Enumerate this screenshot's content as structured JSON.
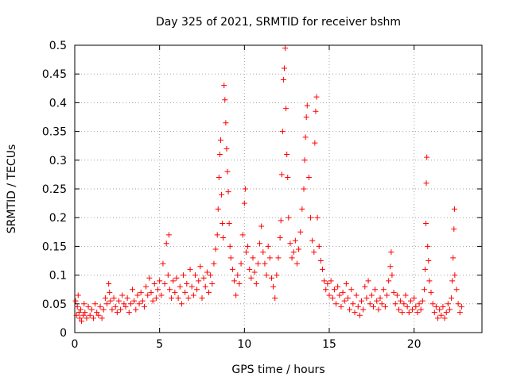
{
  "chart_data": {
    "type": "scatter",
    "title": "Day 325 of 2021, SRMTID for receiver bshm",
    "xlabel": "GPS time / hours",
    "ylabel": "SRMTID / TECUs",
    "xlim": [
      0,
      24
    ],
    "ylim": [
      0,
      0.5
    ],
    "x_ticks": [
      0,
      5,
      10,
      15,
      20
    ],
    "x_tick_labels": [
      "0",
      "5",
      "10",
      "15",
      "20"
    ],
    "y_ticks": [
      0,
      0.05,
      0.1,
      0.15,
      0.2,
      0.25,
      0.3,
      0.35,
      0.4,
      0.45,
      0.5
    ],
    "y_tick_labels": [
      "0",
      "0.05",
      "0.1",
      "0.15",
      "0.2",
      "0.25",
      "0.3",
      "0.35",
      "0.4",
      "0.45",
      "0.5"
    ],
    "grid": true,
    "marker": "+",
    "color": "#ff0000",
    "series": [
      {
        "name": "SRMTID",
        "points": [
          [
            0.05,
            0.055
          ],
          [
            0.1,
            0.03
          ],
          [
            0.15,
            0.045
          ],
          [
            0.2,
            0.065
          ],
          [
            0.25,
            0.035
          ],
          [
            0.3,
            0.025
          ],
          [
            0.35,
            0.04
          ],
          [
            0.4,
            0.02
          ],
          [
            0.5,
            0.03
          ],
          [
            0.55,
            0.05
          ],
          [
            0.6,
            0.035
          ],
          [
            0.7,
            0.025
          ],
          [
            0.8,
            0.045
          ],
          [
            0.9,
            0.03
          ],
          [
            1.0,
            0.04
          ],
          [
            1.1,
            0.025
          ],
          [
            1.2,
            0.05
          ],
          [
            1.3,
            0.035
          ],
          [
            1.4,
            0.03
          ],
          [
            1.5,
            0.045
          ],
          [
            1.6,
            0.025
          ],
          [
            1.7,
            0.04
          ],
          [
            1.8,
            0.06
          ],
          [
            1.9,
            0.05
          ],
          [
            2.0,
            0.085
          ],
          [
            2.05,
            0.07
          ],
          [
            2.1,
            0.055
          ],
          [
            2.2,
            0.04
          ],
          [
            2.3,
            0.06
          ],
          [
            2.4,
            0.045
          ],
          [
            2.5,
            0.035
          ],
          [
            2.6,
            0.055
          ],
          [
            2.7,
            0.04
          ],
          [
            2.8,
            0.065
          ],
          [
            2.9,
            0.05
          ],
          [
            3.0,
            0.045
          ],
          [
            3.1,
            0.06
          ],
          [
            3.2,
            0.035
          ],
          [
            3.3,
            0.05
          ],
          [
            3.4,
            0.075
          ],
          [
            3.5,
            0.055
          ],
          [
            3.6,
            0.04
          ],
          [
            3.7,
            0.065
          ],
          [
            3.8,
            0.05
          ],
          [
            3.9,
            0.07
          ],
          [
            4.0,
            0.055
          ],
          [
            4.1,
            0.045
          ],
          [
            4.2,
            0.08
          ],
          [
            4.3,
            0.065
          ],
          [
            4.4,
            0.095
          ],
          [
            4.5,
            0.07
          ],
          [
            4.6,
            0.055
          ],
          [
            4.7,
            0.085
          ],
          [
            4.8,
            0.06
          ],
          [
            4.9,
            0.075
          ],
          [
            5.0,
            0.09
          ],
          [
            5.1,
            0.065
          ],
          [
            5.2,
            0.12
          ],
          [
            5.3,
            0.085
          ],
          [
            5.4,
            0.155
          ],
          [
            5.5,
            0.1
          ],
          [
            5.55,
            0.17
          ],
          [
            5.6,
            0.075
          ],
          [
            5.7,
            0.06
          ],
          [
            5.8,
            0.09
          ],
          [
            5.9,
            0.07
          ],
          [
            6.0,
            0.095
          ],
          [
            6.1,
            0.06
          ],
          [
            6.2,
            0.08
          ],
          [
            6.3,
            0.05
          ],
          [
            6.4,
            0.1
          ],
          [
            6.5,
            0.07
          ],
          [
            6.6,
            0.085
          ],
          [
            6.7,
            0.06
          ],
          [
            6.8,
            0.11
          ],
          [
            6.9,
            0.08
          ],
          [
            7.0,
            0.065
          ],
          [
            7.1,
            0.1
          ],
          [
            7.2,
            0.075
          ],
          [
            7.3,
            0.09
          ],
          [
            7.4,
            0.115
          ],
          [
            7.5,
            0.06
          ],
          [
            7.6,
            0.095
          ],
          [
            7.7,
            0.08
          ],
          [
            7.8,
            0.105
          ],
          [
            7.9,
            0.07
          ],
          [
            8.0,
            0.1
          ],
          [
            8.1,
            0.085
          ],
          [
            8.2,
            0.12
          ],
          [
            8.3,
            0.145
          ],
          [
            8.4,
            0.17
          ],
          [
            8.45,
            0.215
          ],
          [
            8.5,
            0.27
          ],
          [
            8.55,
            0.31
          ],
          [
            8.6,
            0.335
          ],
          [
            8.65,
            0.24
          ],
          [
            8.7,
            0.19
          ],
          [
            8.75,
            0.165
          ],
          [
            8.8,
            0.43
          ],
          [
            8.85,
            0.405
          ],
          [
            8.9,
            0.365
          ],
          [
            8.95,
            0.32
          ],
          [
            9.0,
            0.28
          ],
          [
            9.05,
            0.245
          ],
          [
            9.1,
            0.19
          ],
          [
            9.15,
            0.15
          ],
          [
            9.2,
            0.13
          ],
          [
            9.3,
            0.11
          ],
          [
            9.4,
            0.09
          ],
          [
            9.5,
            0.065
          ],
          [
            9.6,
            0.1
          ],
          [
            9.7,
            0.085
          ],
          [
            9.8,
            0.12
          ],
          [
            9.9,
            0.17
          ],
          [
            10.0,
            0.225
          ],
          [
            10.05,
            0.25
          ],
          [
            10.1,
            0.14
          ],
          [
            10.2,
            0.15
          ],
          [
            10.3,
            0.11
          ],
          [
            10.4,
            0.095
          ],
          [
            10.5,
            0.13
          ],
          [
            10.6,
            0.105
          ],
          [
            10.7,
            0.085
          ],
          [
            10.8,
            0.12
          ],
          [
            10.9,
            0.155
          ],
          [
            11.0,
            0.185
          ],
          [
            11.1,
            0.14
          ],
          [
            11.2,
            0.12
          ],
          [
            11.3,
            0.1
          ],
          [
            11.4,
            0.15
          ],
          [
            11.5,
            0.13
          ],
          [
            11.6,
            0.095
          ],
          [
            11.7,
            0.08
          ],
          [
            11.8,
            0.06
          ],
          [
            11.9,
            0.1
          ],
          [
            12.0,
            0.13
          ],
          [
            12.1,
            0.165
          ],
          [
            12.15,
            0.195
          ],
          [
            12.2,
            0.275
          ],
          [
            12.25,
            0.35
          ],
          [
            12.3,
            0.44
          ],
          [
            12.35,
            0.46
          ],
          [
            12.4,
            0.495
          ],
          [
            12.45,
            0.39
          ],
          [
            12.5,
            0.31
          ],
          [
            12.55,
            0.27
          ],
          [
            12.6,
            0.2
          ],
          [
            12.7,
            0.155
          ],
          [
            12.8,
            0.13
          ],
          [
            12.9,
            0.14
          ],
          [
            13.0,
            0.16
          ],
          [
            13.1,
            0.12
          ],
          [
            13.2,
            0.145
          ],
          [
            13.3,
            0.175
          ],
          [
            13.4,
            0.215
          ],
          [
            13.5,
            0.25
          ],
          [
            13.55,
            0.3
          ],
          [
            13.6,
            0.34
          ],
          [
            13.65,
            0.375
          ],
          [
            13.7,
            0.395
          ],
          [
            13.8,
            0.27
          ],
          [
            13.9,
            0.2
          ],
          [
            14.0,
            0.16
          ],
          [
            14.1,
            0.14
          ],
          [
            14.15,
            0.33
          ],
          [
            14.2,
            0.385
          ],
          [
            14.25,
            0.41
          ],
          [
            14.3,
            0.2
          ],
          [
            14.4,
            0.15
          ],
          [
            14.5,
            0.125
          ],
          [
            14.6,
            0.11
          ],
          [
            14.7,
            0.09
          ],
          [
            14.8,
            0.075
          ],
          [
            14.9,
            0.085
          ],
          [
            15.0,
            0.065
          ],
          [
            15.1,
            0.09
          ],
          [
            15.2,
            0.06
          ],
          [
            15.3,
            0.075
          ],
          [
            15.4,
            0.05
          ],
          [
            15.5,
            0.08
          ],
          [
            15.6,
            0.065
          ],
          [
            15.7,
            0.045
          ],
          [
            15.8,
            0.07
          ],
          [
            15.9,
            0.055
          ],
          [
            16.0,
            0.085
          ],
          [
            16.1,
            0.06
          ],
          [
            16.2,
            0.04
          ],
          [
            16.3,
            0.075
          ],
          [
            16.4,
            0.05
          ],
          [
            16.5,
            0.035
          ],
          [
            16.6,
            0.065
          ],
          [
            16.7,
            0.045
          ],
          [
            16.8,
            0.03
          ],
          [
            16.9,
            0.055
          ],
          [
            17.0,
            0.04
          ],
          [
            17.1,
            0.08
          ],
          [
            17.2,
            0.06
          ],
          [
            17.3,
            0.09
          ],
          [
            17.4,
            0.05
          ],
          [
            17.5,
            0.065
          ],
          [
            17.6,
            0.045
          ],
          [
            17.7,
            0.075
          ],
          [
            17.8,
            0.055
          ],
          [
            17.9,
            0.04
          ],
          [
            18.0,
            0.06
          ],
          [
            18.1,
            0.05
          ],
          [
            18.2,
            0.075
          ],
          [
            18.3,
            0.045
          ],
          [
            18.4,
            0.065
          ],
          [
            18.5,
            0.09
          ],
          [
            18.6,
            0.115
          ],
          [
            18.65,
            0.14
          ],
          [
            18.7,
            0.1
          ],
          [
            18.8,
            0.07
          ],
          [
            18.9,
            0.05
          ],
          [
            19.0,
            0.065
          ],
          [
            19.1,
            0.04
          ],
          [
            19.2,
            0.055
          ],
          [
            19.3,
            0.035
          ],
          [
            19.4,
            0.05
          ],
          [
            19.5,
            0.065
          ],
          [
            19.6,
            0.045
          ],
          [
            19.7,
            0.035
          ],
          [
            19.8,
            0.055
          ],
          [
            19.9,
            0.04
          ],
          [
            20.0,
            0.06
          ],
          [
            20.1,
            0.045
          ],
          [
            20.2,
            0.035
          ],
          [
            20.3,
            0.05
          ],
          [
            20.4,
            0.04
          ],
          [
            20.5,
            0.055
          ],
          [
            20.6,
            0.075
          ],
          [
            20.65,
            0.11
          ],
          [
            20.7,
            0.19
          ],
          [
            20.72,
            0.26
          ],
          [
            20.75,
            0.305
          ],
          [
            20.8,
            0.15
          ],
          [
            20.85,
            0.125
          ],
          [
            20.9,
            0.09
          ],
          [
            21.0,
            0.07
          ],
          [
            21.1,
            0.05
          ],
          [
            21.2,
            0.035
          ],
          [
            21.3,
            0.045
          ],
          [
            21.4,
            0.025
          ],
          [
            21.5,
            0.04
          ],
          [
            21.6,
            0.03
          ],
          [
            21.7,
            0.045
          ],
          [
            21.8,
            0.025
          ],
          [
            21.9,
            0.035
          ],
          [
            22.0,
            0.05
          ],
          [
            22.1,
            0.04
          ],
          [
            22.2,
            0.06
          ],
          [
            22.25,
            0.09
          ],
          [
            22.3,
            0.13
          ],
          [
            22.35,
            0.18
          ],
          [
            22.38,
            0.215
          ],
          [
            22.4,
            0.1
          ],
          [
            22.5,
            0.075
          ],
          [
            22.6,
            0.05
          ],
          [
            22.7,
            0.035
          ],
          [
            22.8,
            0.045
          ]
        ]
      }
    ]
  }
}
